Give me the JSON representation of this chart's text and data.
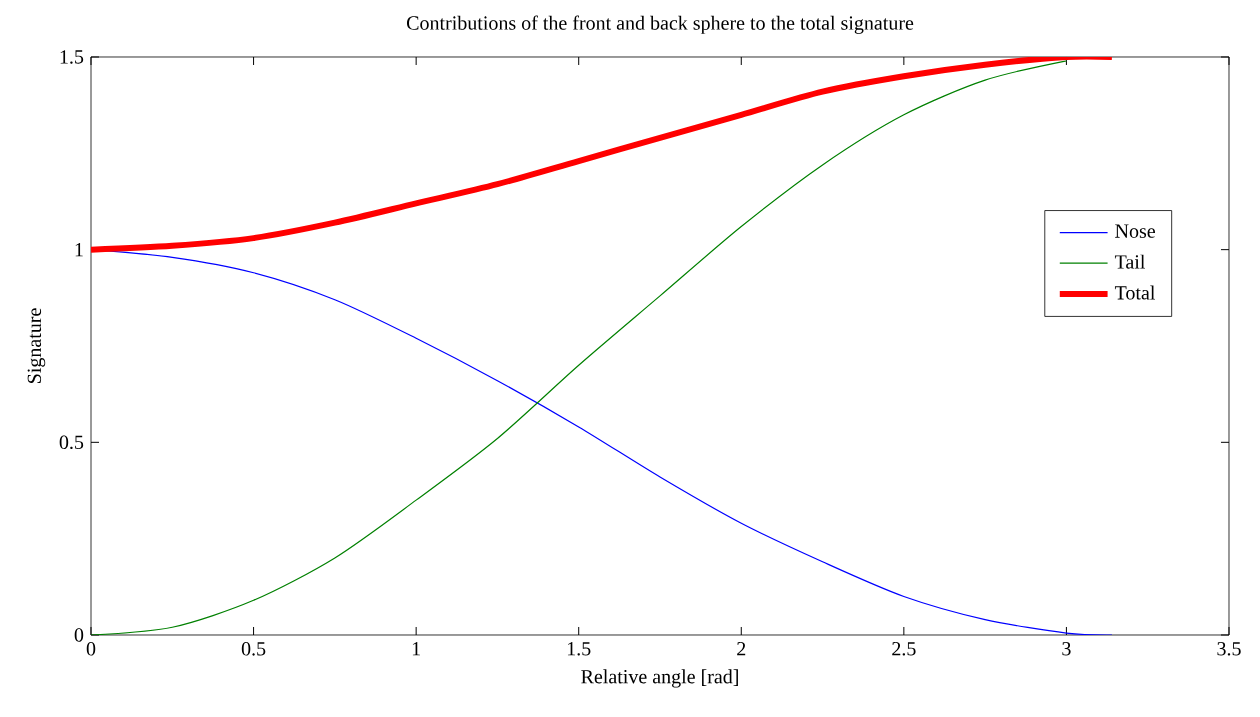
{
  "chart_data": {
    "type": "line",
    "title": "Contributions of the front and back sphere to the total signature",
    "xlabel": "Relative angle [rad]",
    "ylabel": "Signature",
    "x": [
      0,
      0.25,
      0.5,
      0.75,
      1,
      1.25,
      1.5,
      1.75,
      2,
      2.25,
      2.5,
      2.75,
      3,
      3.14
    ],
    "series": [
      {
        "name": "Nose",
        "color": "#0000ff",
        "values": [
          1,
          0.98,
          0.94,
          0.87,
          0.77,
          0.66,
          0.54,
          0.41,
          0.29,
          0.19,
          0.1,
          0.04,
          0.005,
          0
        ]
      },
      {
        "name": "Tail",
        "color": "#008000",
        "values": [
          0,
          0.02,
          0.09,
          0.2,
          0.35,
          0.51,
          0.7,
          0.88,
          1.06,
          1.22,
          1.35,
          1.44,
          1.49,
          null
        ]
      },
      {
        "name": "Total",
        "color": "#ff0000",
        "values": [
          1,
          1.01,
          1.03,
          1.07,
          1.12,
          1.17,
          1.23,
          1.29,
          1.35,
          1.41,
          1.45,
          1.48,
          1.5,
          1.5
        ]
      }
    ],
    "xlim": [
      0,
      3.5
    ],
    "xticks": [
      0,
      0.5,
      1,
      1.5,
      2,
      2.5,
      3,
      3.5
    ],
    "ylim": [
      0,
      1.5
    ],
    "yticks": [
      0,
      0.5,
      1,
      1.5
    ],
    "grid": false,
    "legend": "right",
    "marker": "none",
    "line_style": "solid"
  }
}
